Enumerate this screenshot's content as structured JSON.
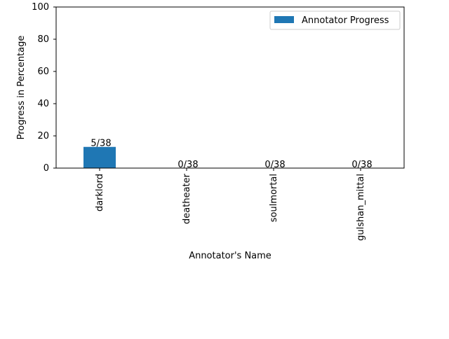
{
  "chart_data": {
    "type": "bar",
    "title": "",
    "xlabel": "Annotator's Name",
    "ylabel": "Progress in Percentage",
    "ylim": [
      0,
      100
    ],
    "yticks": [
      "0",
      "20",
      "40",
      "60",
      "80",
      "100"
    ],
    "categories": [
      "darklord",
      "deatheater",
      "soulmortal",
      "gulshan_mittal"
    ],
    "series": [
      {
        "name": "Annotator Progress",
        "values": [
          13.16,
          0,
          0,
          0
        ],
        "labels": [
          "5/38",
          "0/38",
          "0/38",
          "0/38"
        ],
        "color": "#1f77b4"
      }
    ],
    "legend": {
      "placement": "top-right"
    },
    "grid": false
  }
}
